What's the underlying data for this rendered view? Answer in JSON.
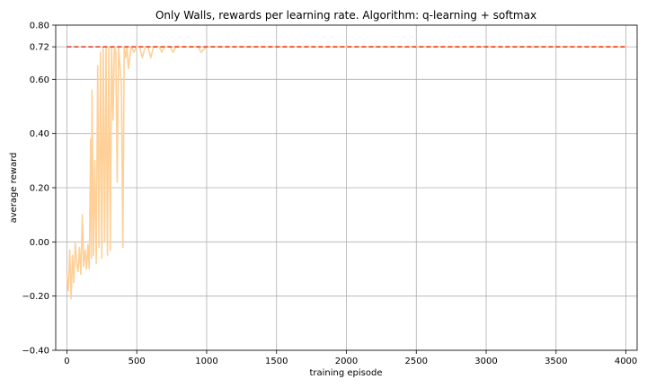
{
  "chart_data": {
    "type": "line",
    "title": "Only Walls, rewards per learning rate. Algorithm: q-learning + softmax",
    "xlabel": "training episode",
    "ylabel": "average reward",
    "xlim": [
      -80,
      4080
    ],
    "ylim": [
      -0.4,
      0.8
    ],
    "grid": true,
    "legend": "none",
    "x_ticks": [
      0,
      500,
      1000,
      1500,
      2000,
      2500,
      3000,
      3500,
      4000
    ],
    "y_ticks": [
      -0.4,
      -0.2,
      0.0,
      0.2,
      0.4,
      0.6,
      0.72,
      0.8
    ],
    "y_tick_labels": [
      "−0.40",
      "−0.20",
      "0.00",
      "0.20",
      "0.40",
      "0.60",
      "0.72",
      "0.80"
    ],
    "series": [
      {
        "style": "solid",
        "color": "#ffd097",
        "x": [
          0,
          10,
          20,
          30,
          40,
          50,
          60,
          70,
          80,
          90,
          100,
          110,
          120,
          130,
          140,
          150,
          160,
          170,
          175,
          180,
          190,
          200,
          210,
          220,
          230,
          240,
          250,
          260,
          270,
          280,
          290,
          300,
          310,
          320,
          330,
          340,
          350,
          360,
          370,
          380,
          390,
          400,
          410,
          420,
          430,
          440,
          460,
          480,
          500,
          520,
          540,
          560,
          580,
          600,
          620,
          640,
          660,
          680,
          700,
          720,
          740,
          760,
          780,
          800,
          820,
          840,
          860,
          880,
          900,
          920,
          940,
          960,
          1000,
          1500,
          2000,
          2500,
          3000,
          3500,
          4000
        ],
        "y": [
          -0.12,
          -0.18,
          -0.03,
          -0.21,
          -0.05,
          -0.15,
          0.0,
          -0.08,
          -0.11,
          -0.02,
          -0.12,
          0.1,
          -0.09,
          -0.03,
          -0.1,
          -0.01,
          -0.1,
          0.38,
          -0.06,
          0.56,
          -0.05,
          0.3,
          -0.08,
          0.65,
          -0.02,
          0.7,
          -0.06,
          0.72,
          0.0,
          0.72,
          -0.05,
          0.72,
          -0.03,
          0.72,
          0.45,
          0.72,
          0.7,
          0.22,
          0.72,
          0.65,
          0.58,
          -0.02,
          0.72,
          0.68,
          0.72,
          0.64,
          0.72,
          0.7,
          0.72,
          0.72,
          0.68,
          0.72,
          0.72,
          0.68,
          0.72,
          0.72,
          0.72,
          0.7,
          0.72,
          0.72,
          0.72,
          0.7,
          0.72,
          0.72,
          0.72,
          0.72,
          0.72,
          0.72,
          0.72,
          0.72,
          0.72,
          0.7,
          0.72,
          0.72,
          0.72,
          0.72,
          0.72,
          0.72,
          0.72
        ]
      },
      {
        "style": "dashed",
        "color": "#e8341c",
        "x": [
          0,
          4000
        ],
        "y": [
          0.72,
          0.72
        ]
      }
    ]
  }
}
